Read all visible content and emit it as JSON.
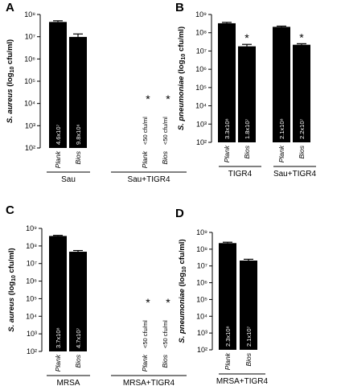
{
  "chart_data": [
    {
      "type": "bar",
      "panel": "A",
      "ylabel_species": "S. aureus",
      "ylabel_unit": " (log",
      "ylabel_sub": "10",
      "ylabel_tail": " cfu/ml)",
      "ytick_labels": [
        "10²",
        "10³",
        "10⁴",
        "10⁵",
        "10⁶",
        "10⁷",
        "10⁸"
      ],
      "log_scale": true,
      "ylim": [
        100,
        100000000
      ],
      "groups": [
        {
          "label": "Sau",
          "bars": [
            {
              "cat": "Plank",
              "value": 46000000,
              "err": 6000000,
              "label": "4.6x10⁷",
              "star": false
            },
            {
              "cat": "Bios",
              "value": 9800000,
              "err": 3500000,
              "label": "9.8x10⁶",
              "star": false
            }
          ]
        },
        {
          "label": "Sau+TIGR4",
          "bars": [
            {
              "cat": "Plank",
              "value": null,
              "err": 0,
              "label": "<50 cfu/ml",
              "star": true
            },
            {
              "cat": "Bios",
              "value": null,
              "err": 0,
              "label": "<50 cfu/ml",
              "star": true
            }
          ]
        }
      ]
    },
    {
      "type": "bar",
      "panel": "B",
      "ylabel_species": "S. pneumoniae",
      "ylabel_unit": " (log",
      "ylabel_sub": "10",
      "ylabel_tail": " cfu/ml)",
      "ytick_labels": [
        "10²",
        "10³",
        "10⁴",
        "10⁵",
        "10⁶",
        "10⁷",
        "10⁸",
        "10⁹"
      ],
      "log_scale": true,
      "ylim": [
        100,
        1000000000
      ],
      "groups": [
        {
          "label": "TIGR4",
          "bars": [
            {
              "cat": "Plank",
              "value": 330000000,
              "err": 40000000,
              "label": "3.3x10⁸",
              "star": false
            },
            {
              "cat": "Bios",
              "value": 18000000,
              "err": 5000000,
              "label": "1.8x10⁷",
              "star": true
            }
          ]
        },
        {
          "label": "Sau+TIGR4",
          "bars": [
            {
              "cat": "Plank",
              "value": 210000000,
              "err": 20000000,
              "label": "2.1x10⁸",
              "star": false
            },
            {
              "cat": "Bios",
              "value": 22000000,
              "err": 3000000,
              "label": "2.2x10⁷",
              "star": true
            }
          ]
        }
      ]
    },
    {
      "type": "bar",
      "panel": "C",
      "ylabel_species": "S. aureus",
      "ylabel_unit": " (log",
      "ylabel_sub": "10",
      "ylabel_tail": " cfu/ml)",
      "ytick_labels": [
        "10²",
        "10³",
        "10⁴",
        "10⁵",
        "10⁶",
        "10⁷",
        "10⁸",
        "10⁹"
      ],
      "log_scale": true,
      "ylim": [
        100,
        1000000000
      ],
      "groups": [
        {
          "label": "MRSA",
          "bars": [
            {
              "cat": "Plank",
              "value": 370000000,
              "err": 30000000,
              "label": "3.7x10⁸",
              "star": false
            },
            {
              "cat": "Bios",
              "value": 47000000,
              "err": 8000000,
              "label": "4.7x10⁷",
              "star": false
            }
          ]
        },
        {
          "label": "MRSA+TIGR4",
          "bars": [
            {
              "cat": "Plank",
              "value": null,
              "err": 0,
              "label": "<50 cfu/ml",
              "star": true
            },
            {
              "cat": "Bios",
              "value": null,
              "err": 0,
              "label": "<50 cfu/ml",
              "star": true
            }
          ]
        }
      ]
    },
    {
      "type": "bar",
      "panel": "D",
      "ylabel_species": "S. pneumoniae",
      "ylabel_unit": " (log",
      "ylabel_sub": "10",
      "ylabel_tail": " cfu/ml)",
      "ytick_labels": [
        "10²",
        "10³",
        "10⁴",
        "10⁵",
        "10⁶",
        "10⁷",
        "10⁸",
        "10⁹"
      ],
      "log_scale": true,
      "ylim": [
        100,
        1000000000
      ],
      "groups": [
        {
          "label": "MRSA+TIGR4",
          "bars": [
            {
              "cat": "Plank",
              "value": 230000000,
              "err": 30000000,
              "label": "2.3x10⁸",
              "star": false
            },
            {
              "cat": "Bios",
              "value": 21000000,
              "err": 4000000,
              "label": "2.1x10⁷",
              "star": false
            }
          ]
        }
      ]
    }
  ]
}
